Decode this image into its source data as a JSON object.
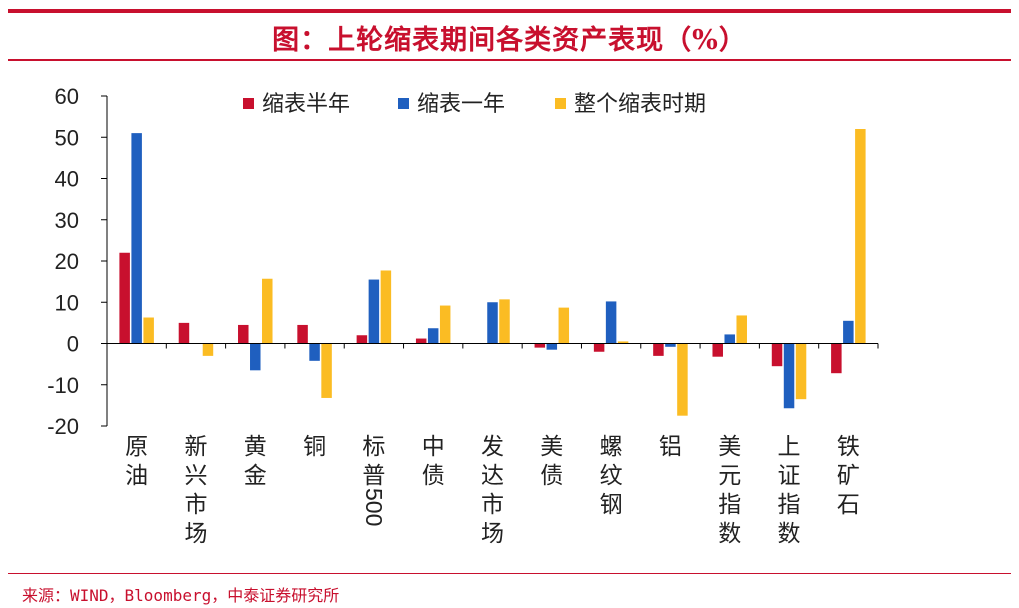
{
  "title": "图：上轮缩表期间各类资产表现（%）",
  "source": "来源：WIND，Bloomberg，中泰证券研究所",
  "chart_data": {
    "type": "bar",
    "categories": [
      "原油",
      "新兴市场",
      "黄金",
      "铜",
      "标普500",
      "中债",
      "发达市场",
      "美债",
      "螺纹钢",
      "铝",
      "美元指数",
      "上证指数",
      "铁矿石"
    ],
    "series": [
      {
        "name": "缩表半年",
        "color": "#c8102e",
        "values": [
          22,
          5,
          4.5,
          4.5,
          2,
          1.2,
          0,
          -1,
          -2,
          -3,
          -3.2,
          -5.5,
          -7.2
        ]
      },
      {
        "name": "缩表一年",
        "color": "#1f5fbf",
        "values": [
          51,
          0,
          -6.5,
          -4.2,
          15.5,
          3.7,
          10,
          -1.5,
          10.2,
          -0.8,
          2.2,
          -15.7,
          5.5
        ]
      },
      {
        "name": "整个缩表时期",
        "color": "#fbbc23",
        "values": [
          6.3,
          -3,
          15.7,
          -13.2,
          17.7,
          9.2,
          10.7,
          8.7,
          0.5,
          -17.5,
          6.8,
          -13.5,
          52
        ]
      }
    ],
    "ylim": [
      -20,
      60
    ],
    "yticks": [
      -20,
      -10,
      0,
      10,
      20,
      30,
      40,
      50,
      60
    ],
    "xlabel": "",
    "ylabel": "",
    "legend_position": "top"
  }
}
